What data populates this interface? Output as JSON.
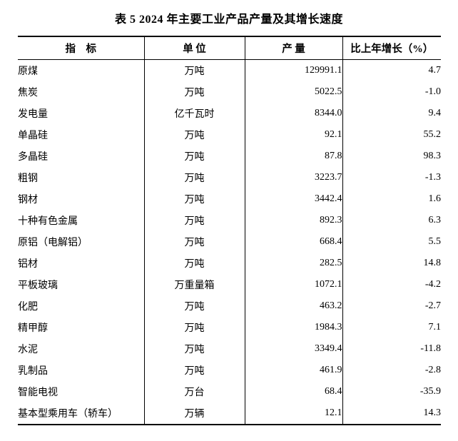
{
  "page": {
    "background_color": "#ffffff",
    "text_color": "#000000"
  },
  "title": "表 5  2024 年主要工业产品产量及其增长速度",
  "table": {
    "headers": {
      "indicator": "指　标",
      "unit": "单 位",
      "output": "产 量",
      "growth": "比上年增长（%）"
    },
    "rows": [
      {
        "indicator": "原煤",
        "unit": "万吨",
        "output": "129991.1",
        "growth": "4.7"
      },
      {
        "indicator": "焦炭",
        "unit": "万吨",
        "output": "5022.5",
        "growth": "-1.0"
      },
      {
        "indicator": "发电量",
        "unit": "亿千瓦时",
        "output": "8344.0",
        "growth": "9.4"
      },
      {
        "indicator": "单晶硅",
        "unit": "万吨",
        "output": "92.1",
        "growth": "55.2"
      },
      {
        "indicator": "多晶硅",
        "unit": "万吨",
        "output": "87.8",
        "growth": "98.3"
      },
      {
        "indicator": "粗钢",
        "unit": "万吨",
        "output": "3223.7",
        "growth": "-1.3"
      },
      {
        "indicator": "钢材",
        "unit": "万吨",
        "output": "3442.4",
        "growth": "1.6"
      },
      {
        "indicator": "十种有色金属",
        "unit": "万吨",
        "output": "892.3",
        "growth": "6.3"
      },
      {
        "indicator": "原铝（电解铝）",
        "unit": "万吨",
        "output": "668.4",
        "growth": "5.5"
      },
      {
        "indicator": "铝材",
        "unit": "万吨",
        "output": "282.5",
        "growth": "14.8"
      },
      {
        "indicator": "平板玻璃",
        "unit": "万重量箱",
        "output": "1072.1",
        "growth": "-4.2"
      },
      {
        "indicator": "化肥",
        "unit": "万吨",
        "output": "463.2",
        "growth": "-2.7"
      },
      {
        "indicator": "精甲醇",
        "unit": "万吨",
        "output": "1984.3",
        "growth": "7.1"
      },
      {
        "indicator": "水泥",
        "unit": "万吨",
        "output": "3349.4",
        "growth": "-11.8"
      },
      {
        "indicator": "乳制品",
        "unit": "万吨",
        "output": "461.9",
        "growth": "-2.8"
      },
      {
        "indicator": "智能电视",
        "unit": "万台",
        "output": "68.4",
        "growth": "-35.9"
      },
      {
        "indicator": "基本型乘用车（轿车）",
        "unit": "万辆",
        "output": "12.1",
        "growth": "14.3"
      }
    ]
  }
}
